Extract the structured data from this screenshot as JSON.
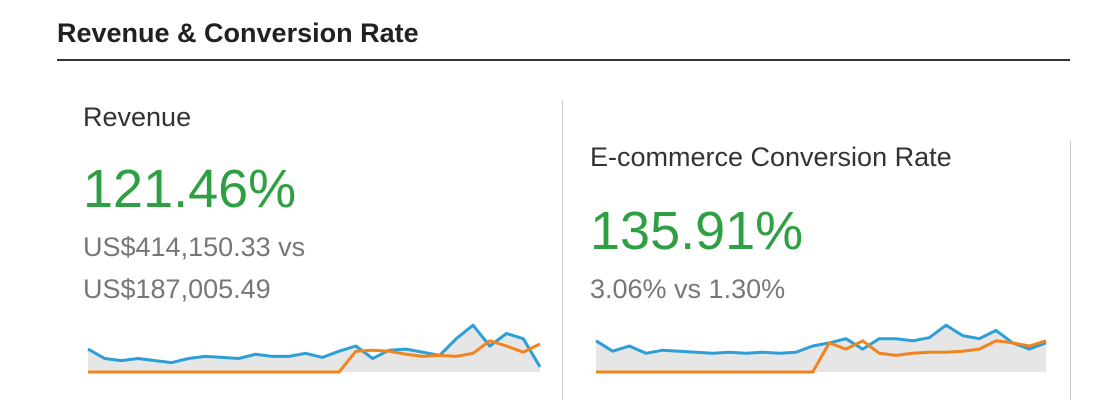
{
  "header": {
    "title": "Revenue & Conversion Rate"
  },
  "cards": [
    {
      "label": "Revenue",
      "change": "121.46%",
      "detail": "US$414,150.33 vs US$187,005.49",
      "sparkline": {
        "type": "line",
        "ylim": [
          0,
          50
        ],
        "area": true,
        "series": [
          {
            "color": "#2b9fd6",
            "values": [
              22,
              13,
              11,
              13,
              11,
              9,
              13,
              15,
              14,
              13,
              17,
              15,
              15,
              18,
              14,
              20,
              25,
              13,
              21,
              22,
              19,
              16,
              32,
              45,
              25,
              37,
              32,
              5
            ]
          },
          {
            "color": "#f0851f",
            "values": [
              0,
              0,
              0,
              0,
              0,
              0,
              0,
              0,
              0,
              0,
              0,
              0,
              0,
              0,
              0,
              0,
              20,
              21,
              20,
              17,
              15,
              16,
              15,
              18,
              30,
              25,
              19,
              27
            ]
          }
        ]
      }
    },
    {
      "label": "E-commerce Conversion Rate",
      "change": "135.91%",
      "detail": "3.06% vs 1.30%",
      "sparkline": {
        "type": "line",
        "ylim": [
          0,
          50
        ],
        "area": true,
        "series": [
          {
            "color": "#2b9fd6",
            "values": [
              30,
              20,
              25,
              18,
              21,
              20,
              19,
              18,
              19,
              18,
              19,
              18,
              19,
              25,
              28,
              32,
              22,
              32,
              32,
              30,
              33,
              45,
              35,
              32,
              40,
              28,
              22,
              28
            ]
          },
          {
            "color": "#f0851f",
            "values": [
              0,
              0,
              0,
              0,
              0,
              0,
              0,
              0,
              0,
              0,
              0,
              0,
              0,
              0,
              28,
              22,
              30,
              18,
              16,
              18,
              19,
              19,
              20,
              22,
              30,
              28,
              25,
              30
            ]
          }
        ]
      }
    }
  ]
}
